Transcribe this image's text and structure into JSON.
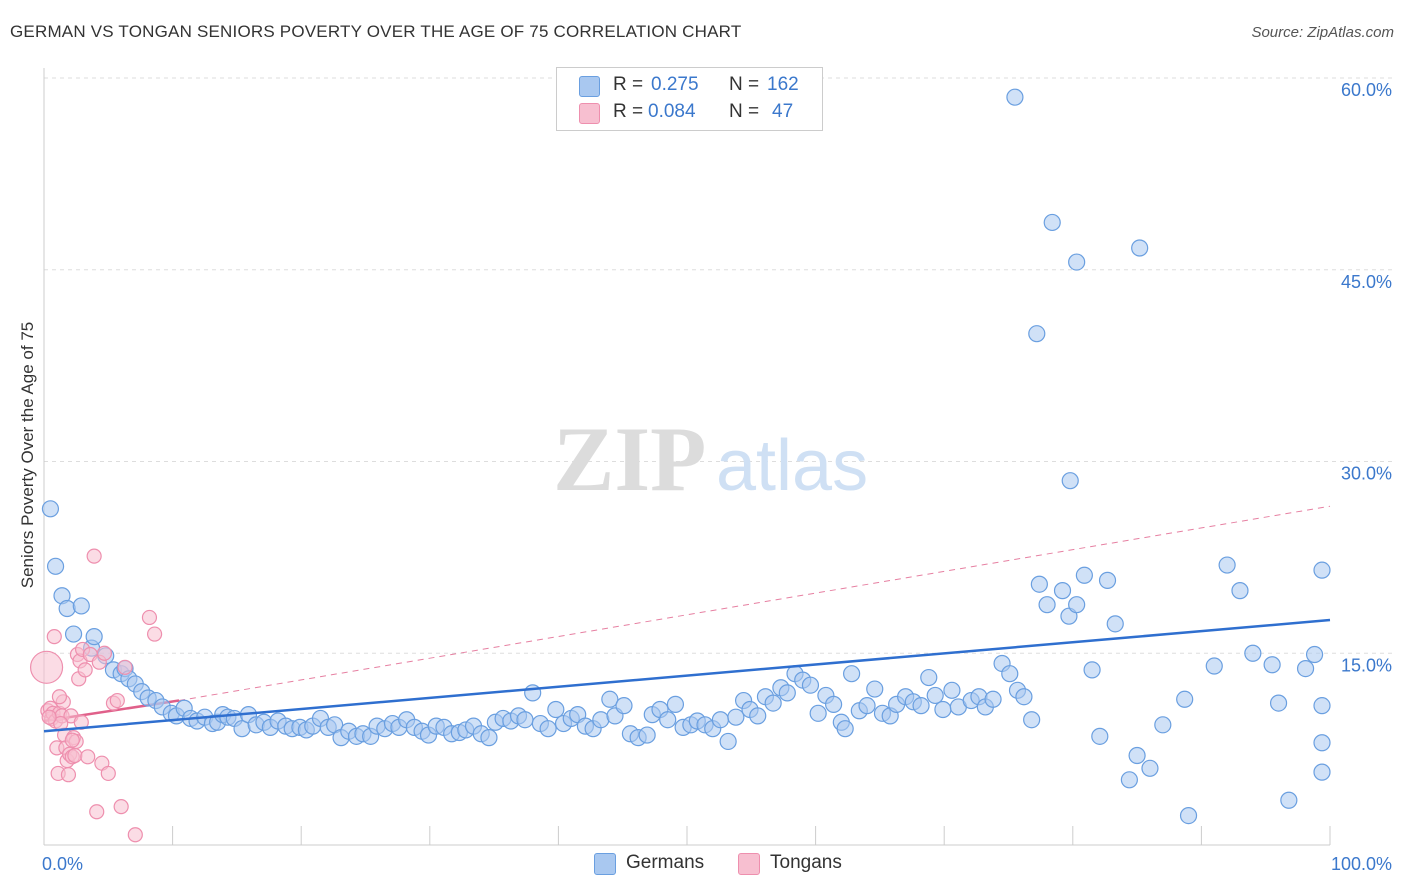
{
  "title": "GERMAN VS TONGAN SENIORS POVERTY OVER THE AGE OF 75 CORRELATION CHART",
  "source": "Source: ZipAtlas.com",
  "watermark": {
    "zip": "ZIP",
    "atlas": "atlas"
  },
  "legend": {
    "rows": [
      {
        "r_label": "R =",
        "r_value": "0.275",
        "n_label": "N =",
        "n_value": "162"
      },
      {
        "r_label": "R =",
        "r_value": "0.084",
        "n_label": "N =",
        "n_value": "47"
      }
    ]
  },
  "bottom_legend": {
    "germans": "Germans",
    "tongans": "Tongans"
  },
  "colors": {
    "german_fill": "#a9c8f0",
    "german_stroke": "#6a9fe0",
    "german_line": "#2f6fcf",
    "tongan_fill": "#f7bfd0",
    "tongan_stroke": "#ee8fae",
    "tongan_line": "#e0608a",
    "tick_text": "#3b78cc",
    "grid": "#dddddd"
  },
  "chart_data": {
    "type": "scatter",
    "title": "GERMAN VS TONGAN SENIORS POVERTY OVER THE AGE OF 75 CORRELATION CHART",
    "xlabel": "",
    "ylabel": "Seniors Poverty Over the Age of 75",
    "xlim": [
      0,
      100
    ],
    "ylim": [
      0,
      60
    ],
    "x_tick_labels": [
      "0.0%",
      "100.0%"
    ],
    "y_ticks": [
      15,
      30,
      45,
      60
    ],
    "y_tick_labels": [
      "15.0%",
      "30.0%",
      "45.0%",
      "60.0%"
    ],
    "grid": true,
    "legend_placement": "top-center",
    "series": [
      {
        "name": "Germans",
        "R": 0.275,
        "N": 162,
        "trend": {
          "x": [
            0,
            100
          ],
          "y": [
            8.9,
            17.6
          ],
          "style": "solid"
        },
        "points": [
          [
            0.5,
            26.3
          ],
          [
            0.9,
            21.8
          ],
          [
            1.4,
            19.5
          ],
          [
            1.8,
            18.5
          ],
          [
            2.3,
            16.5
          ],
          [
            2.9,
            18.7
          ],
          [
            3.7,
            15.4
          ],
          [
            3.9,
            16.3
          ],
          [
            4.8,
            14.8
          ],
          [
            5.4,
            13.7
          ],
          [
            6.0,
            13.4
          ],
          [
            6.3,
            13.8
          ],
          [
            6.6,
            13.0
          ],
          [
            7.1,
            12.6
          ],
          [
            7.6,
            12.0
          ],
          [
            8.1,
            11.5
          ],
          [
            8.7,
            11.3
          ],
          [
            9.2,
            10.8
          ],
          [
            9.9,
            10.3
          ],
          [
            10.3,
            10.1
          ],
          [
            10.9,
            10.7
          ],
          [
            11.4,
            9.9
          ],
          [
            11.9,
            9.7
          ],
          [
            12.5,
            10.0
          ],
          [
            13.1,
            9.5
          ],
          [
            13.5,
            9.6
          ],
          [
            13.9,
            10.2
          ],
          [
            14.3,
            10.0
          ],
          [
            14.8,
            9.9
          ],
          [
            15.4,
            9.1
          ],
          [
            15.9,
            10.2
          ],
          [
            16.5,
            9.4
          ],
          [
            17.1,
            9.6
          ],
          [
            17.6,
            9.2
          ],
          [
            18.2,
            9.7
          ],
          [
            18.8,
            9.3
          ],
          [
            19.3,
            9.1
          ],
          [
            19.9,
            9.2
          ],
          [
            20.4,
            9.0
          ],
          [
            20.9,
            9.3
          ],
          [
            21.5,
            9.9
          ],
          [
            22.1,
            9.2
          ],
          [
            22.6,
            9.4
          ],
          [
            23.1,
            8.4
          ],
          [
            23.7,
            8.9
          ],
          [
            24.3,
            8.5
          ],
          [
            24.8,
            8.7
          ],
          [
            25.4,
            8.5
          ],
          [
            25.9,
            9.3
          ],
          [
            26.5,
            9.1
          ],
          [
            27.1,
            9.5
          ],
          [
            27.6,
            9.2
          ],
          [
            28.2,
            9.8
          ],
          [
            28.8,
            9.2
          ],
          [
            29.4,
            8.9
          ],
          [
            29.9,
            8.6
          ],
          [
            30.5,
            9.3
          ],
          [
            31.1,
            9.2
          ],
          [
            31.7,
            8.7
          ],
          [
            32.3,
            8.8
          ],
          [
            32.8,
            9.0
          ],
          [
            33.4,
            9.3
          ],
          [
            34.0,
            8.7
          ],
          [
            34.6,
            8.4
          ],
          [
            35.1,
            9.6
          ],
          [
            35.7,
            9.9
          ],
          [
            36.3,
            9.7
          ],
          [
            36.9,
            10.1
          ],
          [
            37.4,
            9.8
          ],
          [
            38.0,
            11.9
          ],
          [
            38.6,
            9.5
          ],
          [
            39.2,
            9.1
          ],
          [
            39.8,
            10.6
          ],
          [
            40.4,
            9.5
          ],
          [
            41.0,
            9.9
          ],
          [
            41.5,
            10.2
          ],
          [
            42.1,
            9.3
          ],
          [
            42.7,
            9.1
          ],
          [
            43.3,
            9.8
          ],
          [
            44.0,
            11.4
          ],
          [
            44.4,
            10.1
          ],
          [
            45.1,
            10.9
          ],
          [
            45.6,
            8.7
          ],
          [
            46.2,
            8.4
          ],
          [
            46.9,
            8.6
          ],
          [
            47.3,
            10.2
          ],
          [
            47.9,
            10.6
          ],
          [
            48.5,
            9.8
          ],
          [
            49.1,
            11.0
          ],
          [
            49.7,
            9.2
          ],
          [
            50.3,
            9.4
          ],
          [
            50.8,
            9.7
          ],
          [
            51.4,
            9.4
          ],
          [
            52.0,
            9.1
          ],
          [
            52.6,
            9.8
          ],
          [
            53.2,
            8.1
          ],
          [
            53.8,
            10.0
          ],
          [
            54.4,
            11.3
          ],
          [
            54.9,
            10.6
          ],
          [
            55.5,
            10.1
          ],
          [
            56.1,
            11.6
          ],
          [
            56.7,
            11.1
          ],
          [
            57.3,
            12.3
          ],
          [
            57.8,
            11.9
          ],
          [
            58.4,
            13.4
          ],
          [
            59.0,
            12.9
          ],
          [
            59.6,
            12.5
          ],
          [
            60.2,
            10.3
          ],
          [
            60.8,
            11.7
          ],
          [
            61.4,
            11.0
          ],
          [
            62.0,
            9.6
          ],
          [
            62.3,
            9.1
          ],
          [
            62.8,
            13.4
          ],
          [
            63.4,
            10.5
          ],
          [
            64.0,
            10.9
          ],
          [
            64.6,
            12.2
          ],
          [
            65.2,
            10.3
          ],
          [
            65.8,
            10.1
          ],
          [
            66.3,
            11.0
          ],
          [
            67.0,
            11.6
          ],
          [
            67.6,
            11.2
          ],
          [
            68.2,
            10.9
          ],
          [
            68.8,
            13.1
          ],
          [
            69.3,
            11.7
          ],
          [
            69.9,
            10.6
          ],
          [
            70.6,
            12.1
          ],
          [
            71.1,
            10.8
          ],
          [
            72.1,
            11.3
          ],
          [
            72.7,
            11.6
          ],
          [
            73.2,
            10.8
          ],
          [
            73.8,
            11.4
          ],
          [
            74.5,
            14.2
          ],
          [
            75.1,
            13.4
          ],
          [
            75.7,
            12.1
          ],
          [
            76.2,
            11.6
          ],
          [
            76.8,
            9.8
          ],
          [
            77.4,
            20.4
          ],
          [
            78.0,
            18.8
          ],
          [
            79.2,
            19.9
          ],
          [
            79.7,
            17.9
          ],
          [
            80.3,
            18.8
          ],
          [
            80.9,
            21.1
          ],
          [
            81.5,
            13.7
          ],
          [
            82.1,
            8.5
          ],
          [
            82.7,
            20.7
          ],
          [
            83.3,
            17.3
          ],
          [
            84.4,
            5.1
          ],
          [
            85.0,
            7.0
          ],
          [
            86.0,
            6.0
          ],
          [
            87.0,
            9.4
          ],
          [
            88.7,
            11.4
          ],
          [
            89.0,
            2.3
          ],
          [
            91.0,
            14.0
          ],
          [
            92.0,
            21.9
          ],
          [
            93.0,
            19.9
          ],
          [
            94.0,
            15.0
          ],
          [
            95.5,
            14.1
          ],
          [
            96.0,
            11.1
          ],
          [
            96.8,
            3.5
          ],
          [
            100.0,
            5.7
          ],
          [
            75.5,
            58.5
          ],
          [
            78.4,
            48.7
          ],
          [
            80.3,
            45.6
          ],
          [
            85.2,
            46.7
          ],
          [
            77.2,
            40.0
          ],
          [
            79.8,
            28.5
          ],
          [
            98.1,
            13.8
          ],
          [
            102.5,
            8.0
          ],
          [
            101.0,
            10.9
          ],
          [
            98.8,
            14.9
          ],
          [
            99.9,
            21.5
          ]
        ]
      },
      {
        "name": "Tongans",
        "R": 0.084,
        "N": 47,
        "trend": {
          "x": [
            0,
            10.5
          ],
          "y": [
            9.7,
            11.3
          ],
          "style": "solid"
        },
        "trend_extension": {
          "x": [
            10.5,
            100
          ],
          "y": [
            11.3,
            26.5
          ],
          "style": "dashed"
        },
        "points": [
          [
            0.2,
            13.9
          ],
          [
            0.3,
            10.5
          ],
          [
            0.5,
            10.7
          ],
          [
            0.6,
            9.9
          ],
          [
            0.7,
            10.3
          ],
          [
            0.8,
            16.3
          ],
          [
            0.9,
            9.7
          ],
          [
            1.0,
            7.6
          ],
          [
            1.1,
            5.6
          ],
          [
            1.2,
            10.3
          ],
          [
            1.4,
            10.1
          ],
          [
            1.5,
            11.2
          ],
          [
            1.6,
            8.6
          ],
          [
            1.7,
            7.6
          ],
          [
            1.8,
            6.6
          ],
          [
            1.9,
            5.5
          ],
          [
            2.0,
            7.1
          ],
          [
            2.1,
            10.1
          ],
          [
            2.2,
            6.9
          ],
          [
            2.3,
            8.4
          ],
          [
            2.4,
            7.0
          ],
          [
            2.5,
            8.1
          ],
          [
            2.6,
            14.9
          ],
          [
            2.7,
            13.0
          ],
          [
            2.8,
            14.4
          ],
          [
            3.0,
            15.3
          ],
          [
            3.2,
            13.7
          ],
          [
            3.4,
            6.9
          ],
          [
            3.6,
            14.9
          ],
          [
            3.9,
            22.6
          ],
          [
            4.1,
            2.6
          ],
          [
            4.3,
            14.3
          ],
          [
            4.5,
            6.4
          ],
          [
            4.7,
            15.0
          ],
          [
            5.0,
            5.6
          ],
          [
            5.4,
            11.1
          ],
          [
            5.7,
            11.3
          ],
          [
            6.0,
            3.0
          ],
          [
            6.3,
            13.9
          ],
          [
            7.1,
            0.8
          ],
          [
            8.2,
            17.8
          ],
          [
            8.6,
            16.5
          ],
          [
            1.3,
            9.5
          ],
          [
            2.9,
            9.6
          ],
          [
            1.2,
            11.6
          ],
          [
            0.4,
            10.0
          ],
          [
            2.2,
            8.2
          ]
        ]
      }
    ]
  }
}
